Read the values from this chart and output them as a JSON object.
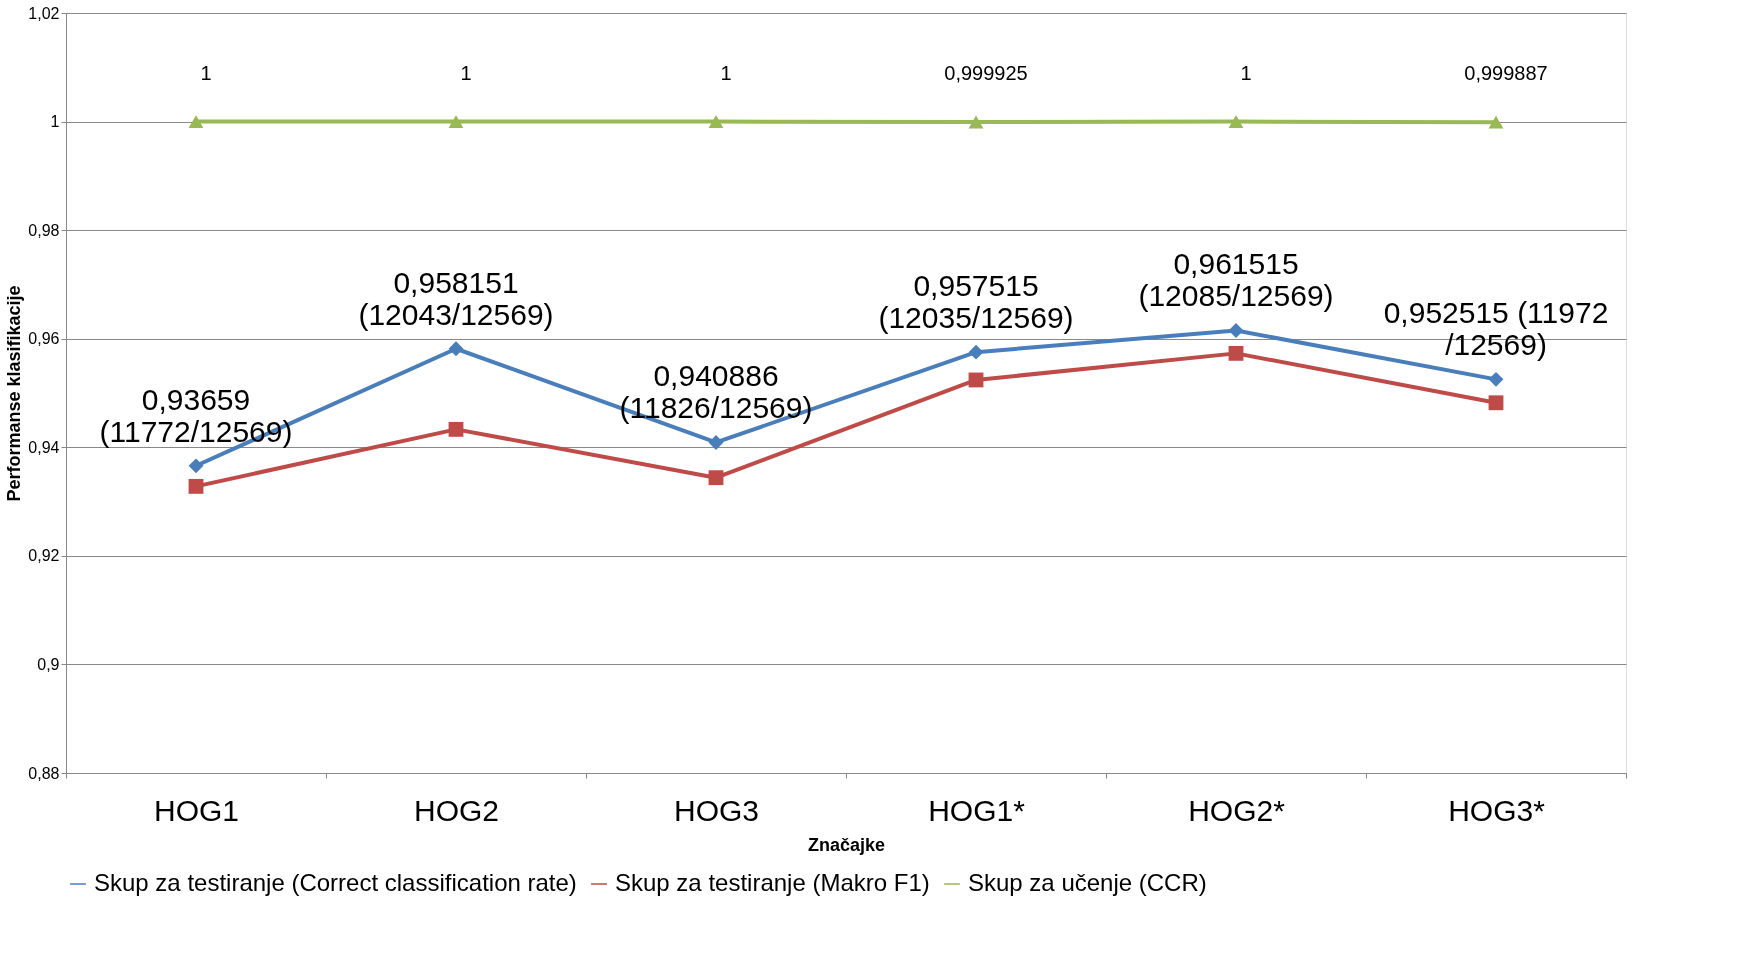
{
  "chart_data": {
    "type": "line",
    "xlabel": "Značajke",
    "ylabel": "Performanse klasifikacije",
    "categories": [
      "HOG1",
      "HOG2",
      "HOG3",
      "HOG1*",
      "HOG2*",
      "HOG3*"
    ],
    "series": [
      {
        "name": "Skup za testiranje (Correct classification rate)",
        "color": "#4a7ebb",
        "marker": "diamond",
        "values": [
          0.93659,
          0.958151,
          0.940886,
          0.957515,
          0.961515,
          0.952515
        ],
        "value_labels": [
          "0,93659\n(11772/12569)",
          "0,958151\n(12043/12569)",
          "0,940886\n(11826/12569)",
          "0,957515\n(12035/12569)",
          "0,961515\n(12085/12569)",
          "0,952515 (11972\n/12569)"
        ]
      },
      {
        "name": "Skup za testiranje (Makro F1)",
        "color": "#be4b48",
        "marker": "square",
        "values": [
          0.9328,
          0.9433,
          0.9344,
          0.9524,
          0.9573,
          0.9482
        ]
      },
      {
        "name": "Skup za učenje (CCR)",
        "color": "#98b954",
        "marker": "triangle",
        "values": [
          1,
          1,
          1,
          0.999925,
          1,
          0.999887
        ],
        "value_labels": [
          "1",
          "1",
          "1",
          "0,999925",
          "1",
          "0,999887"
        ]
      }
    ],
    "ylim": [
      0.88,
      1.02
    ],
    "yticks": [
      {
        "value": 0.88,
        "label": "0,88"
      },
      {
        "value": 0.9,
        "label": "0,9"
      },
      {
        "value": 0.92,
        "label": "0,92"
      },
      {
        "value": 0.94,
        "label": "0,94"
      },
      {
        "value": 0.96,
        "label": "0,96"
      },
      {
        "value": 0.98,
        "label": "0,98"
      },
      {
        "value": 1,
        "label": "1"
      },
      {
        "value": 1.02,
        "label": "1,02"
      }
    ],
    "grid": "y",
    "legend": "bottom",
    "line_style": "solid"
  }
}
